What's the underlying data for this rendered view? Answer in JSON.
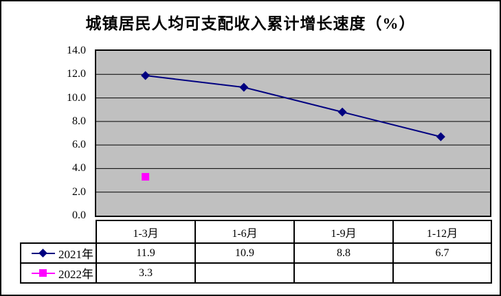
{
  "chart_data": {
    "type": "line",
    "title": "城镇居民人均可支配收入累计增长速度（%）",
    "categories": [
      "1-3月",
      "1-6月",
      "1-9月",
      "1-12月"
    ],
    "series": [
      {
        "name": "2021年",
        "color": "#000080",
        "marker": "diamond",
        "values": [
          11.9,
          10.9,
          8.8,
          6.7
        ]
      },
      {
        "name": "2022年",
        "color": "#FF00FF",
        "marker": "square",
        "values": [
          3.3
        ]
      }
    ],
    "xlabel": "",
    "ylabel": "",
    "ylim": [
      0,
      14
    ],
    "ytick_step": 2,
    "yticks": [
      "14.0",
      "12.0",
      "10.0",
      "8.0",
      "6.0",
      "4.0",
      "2.0",
      "0.0"
    ],
    "grid": "horizontal-only",
    "plot_bg_color": "#C0C0C0",
    "grid_color": "#000000",
    "legend_position": "data-table-left-column",
    "data_table_shown": true
  }
}
